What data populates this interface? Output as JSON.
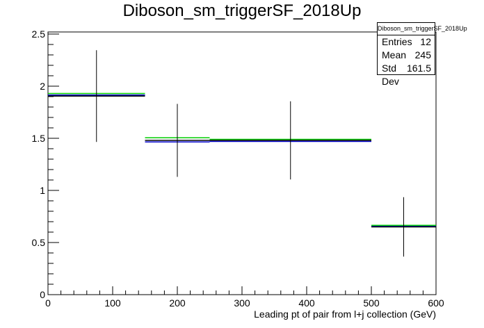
{
  "chart_data": {
    "type": "histogram",
    "title": "Diboson_sm_triggerSF_2018Up",
    "xlabel": "Leading pt of pair from l+j collection (GeV)",
    "ylabel": "",
    "xlim": [
      0,
      600
    ],
    "ylim": [
      0,
      2.52
    ],
    "x_ticks": [
      0,
      100,
      200,
      300,
      400,
      500,
      600
    ],
    "y_ticks": [
      0,
      0.5,
      1,
      1.5,
      2,
      2.5
    ],
    "x_tick_labels": [
      "0",
      "100",
      "200",
      "300",
      "400",
      "500",
      "600"
    ],
    "y_tick_labels": [
      "0",
      "0.5",
      "1",
      "1.5",
      "2",
      "2.5"
    ],
    "bin_edges": [
      0,
      150,
      250,
      500,
      600
    ],
    "series": [
      {
        "color": "#000000",
        "values": [
          1.905,
          1.48,
          1.48,
          0.65
        ],
        "errors": [
          0.44,
          0.35,
          0.375,
          0.285
        ]
      },
      {
        "color": "#00cc00",
        "values": [
          1.93,
          1.505,
          1.49,
          0.665
        ]
      },
      {
        "color": "#0000cc",
        "values": [
          1.915,
          1.465,
          1.47,
          0.655
        ]
      }
    ],
    "grid": false,
    "legend": "none",
    "stats": {
      "name": "Diboson_sm_triggerSF_2018Up",
      "entries_label": "Entries",
      "entries": "12",
      "mean_label": "Mean",
      "mean": "245",
      "stddev_label": "Std Dev",
      "stddev": "161.5"
    }
  }
}
